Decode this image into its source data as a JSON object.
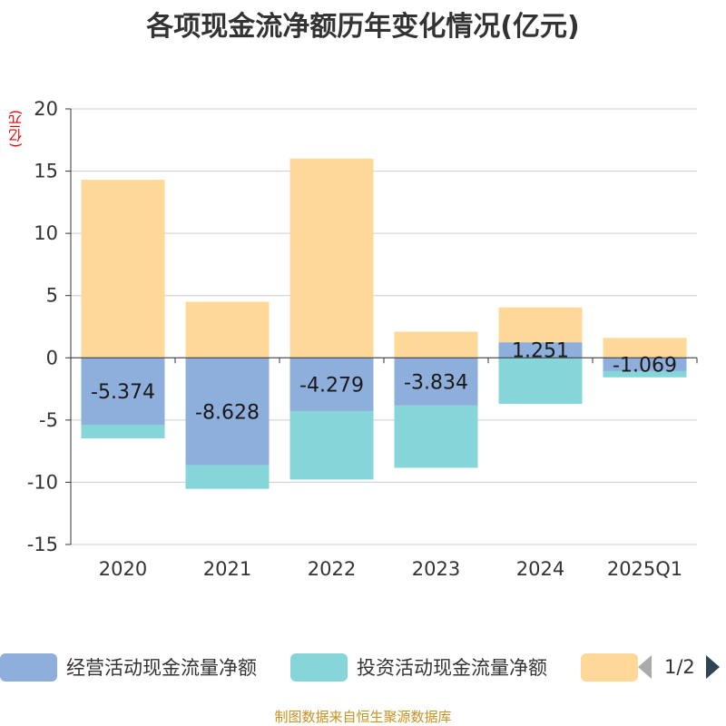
{
  "title": "各项现金流净额历年变化情况(亿元)",
  "unit_label": "(亿元)",
  "footer": "制图数据来自恒生聚源数据库",
  "legend": {
    "items": [
      {
        "label": "经营活动现金流量净额",
        "color": "#8eaedb"
      },
      {
        "label": "投资活动现金流量净额",
        "color": "#86d5d8"
      },
      {
        "label": "",
        "color": "#fed898"
      }
    ],
    "page": "1/2"
  },
  "chart_data": {
    "type": "bar",
    "stacked": true,
    "categories": [
      "2020",
      "2021",
      "2022",
      "2023",
      "2024",
      "2025Q1"
    ],
    "series": [
      {
        "name": "经营活动现金流量净额",
        "color": "#8eaedb",
        "values": [
          -5.374,
          -8.628,
          -4.279,
          -3.834,
          1.251,
          -1.069
        ],
        "labels": [
          "-5.374",
          "-8.628",
          "-4.279",
          "-3.834",
          "1.251",
          "-1.069"
        ]
      },
      {
        "name": "投资活动现金流量净额",
        "color": "#86d5d8",
        "values": [
          -1.1,
          -1.9,
          -5.5,
          -5.0,
          -3.7,
          -0.5
        ]
      },
      {
        "name": "",
        "color": "#fed898",
        "values": [
          14.3,
          4.5,
          16.0,
          2.1,
          2.8,
          1.6
        ]
      }
    ],
    "ylim": [
      -15,
      20
    ],
    "yticks": [
      20,
      15,
      10,
      5,
      0,
      -5,
      -10,
      -15
    ],
    "ylabel": "(亿元)",
    "grid": true
  }
}
